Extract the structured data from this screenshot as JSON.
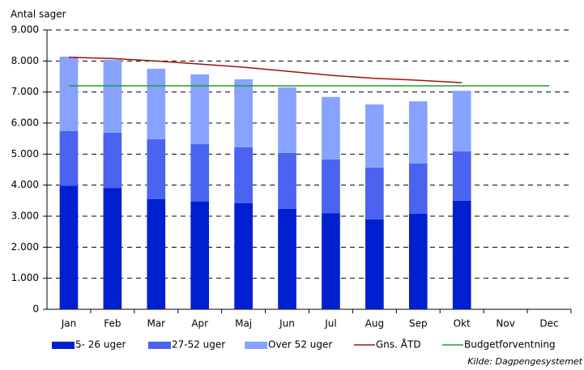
{
  "chart_data": {
    "type": "stacked_bar_line",
    "y_label": "Antal sager",
    "source": "Kilde: Dagpengesystemet",
    "categories": [
      "Jan",
      "Feb",
      "Mar",
      "Apr",
      "Maj",
      "Jun",
      "Jul",
      "Aug",
      "Sep",
      "Okt",
      "Nov",
      "Dec"
    ],
    "series": [
      {
        "name": "5- 26 uger",
        "color": "#0020d0",
        "kind": "bar",
        "values": [
          3980,
          3910,
          3550,
          3470,
          3420,
          3240,
          3100,
          2900,
          3080,
          3500,
          null,
          null
        ]
      },
      {
        "name": "27-52 uger",
        "color": "#4a63f0",
        "kind": "bar",
        "values": [
          1760,
          1780,
          1930,
          1850,
          1800,
          1800,
          1730,
          1670,
          1620,
          1590,
          null,
          null
        ]
      },
      {
        "name": "Over 52 uger",
        "color": "#87a3ff",
        "kind": "bar",
        "values": [
          2400,
          2350,
          2270,
          2250,
          2190,
          2110,
          2010,
          2030,
          2000,
          1950,
          null,
          null
        ]
      },
      {
        "name": "Gns. ÅTD",
        "color": "#a01010",
        "kind": "line",
        "values": [
          8120,
          8080,
          8000,
          7900,
          7800,
          7670,
          7540,
          7440,
          7380,
          7300,
          null,
          null
        ]
      },
      {
        "name": "Budgetforventning",
        "color": "#22a022",
        "kind": "line",
        "values": [
          7200,
          7200,
          7200,
          7200,
          7200,
          7200,
          7200,
          7200,
          7200,
          7200,
          7200,
          7200
        ]
      }
    ],
    "ylim": [
      0,
      9000
    ],
    "yticks": [
      0,
      {
        "value": 1000,
        "label": "1.000"
      },
      {
        "value": 2000,
        "label": "2.000"
      },
      {
        "value": 3000,
        "label": "3.000"
      },
      {
        "value": 4000,
        "label": "4.000"
      },
      {
        "value": 5000,
        "label": "5.000"
      },
      {
        "value": 6000,
        "label": "6.000"
      },
      {
        "value": 7000,
        "label": "7.000"
      },
      {
        "value": 8000,
        "label": "8.000"
      },
      {
        "value": 9000,
        "label": "9.000"
      }
    ],
    "grid": true
  }
}
